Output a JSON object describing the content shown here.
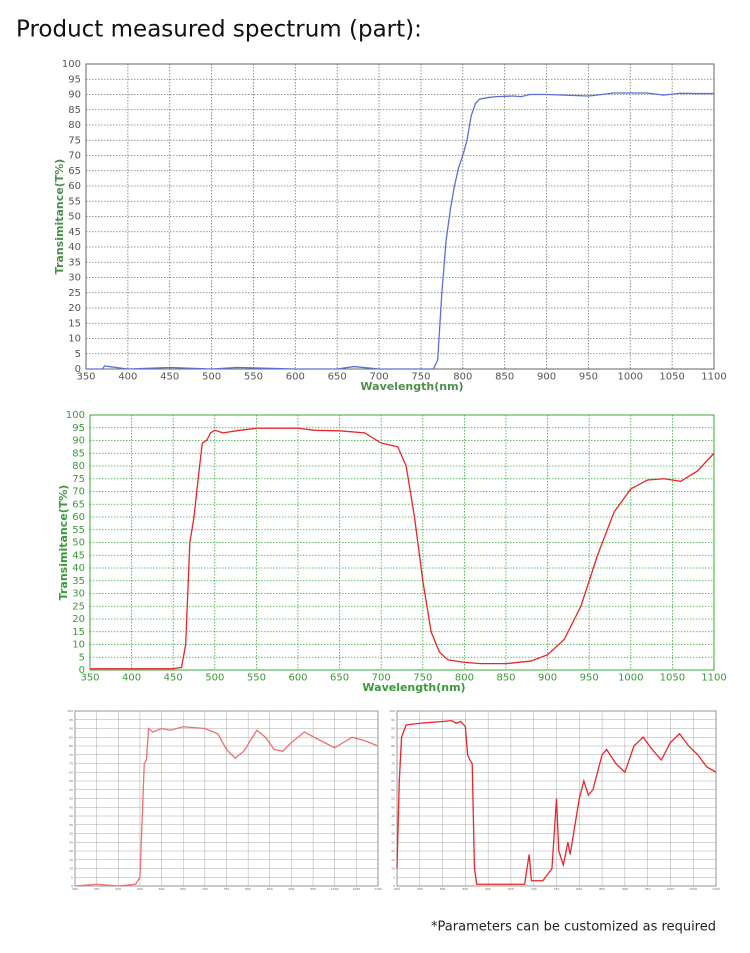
{
  "header": {
    "title": "Product measured spectrum (part):"
  },
  "footnote": "*Parameters can be customized as required",
  "chart_data": [
    {
      "type": "line",
      "xlabel": "Wavelength(nm)",
      "ylabel": "Transimitance(T%)",
      "x": [
        350,
        370,
        372,
        400,
        450,
        500,
        530,
        600,
        650,
        670,
        700,
        750,
        765,
        770,
        775,
        780,
        785,
        790,
        795,
        800,
        805,
        810,
        815,
        820,
        830,
        840,
        860,
        870,
        880,
        900,
        950,
        960,
        980,
        1000,
        1020,
        1040,
        1060,
        1080,
        1100
      ],
      "series": [
        {
          "name": "T",
          "color": "#5b6fd6",
          "values": [
            0,
            0,
            1,
            0,
            0.5,
            0,
            0.5,
            0,
            0,
            0.8,
            0,
            0,
            0,
            3,
            25,
            42,
            52,
            60,
            66,
            70,
            75,
            83,
            87,
            88.5,
            89,
            89.3,
            89.5,
            89.3,
            90,
            90,
            89.5,
            89.8,
            90.5,
            90.5,
            90.5,
            89.8,
            90.4,
            90.3,
            90.3
          ]
        }
      ],
      "xlim": [
        350,
        1100
      ],
      "ylim": [
        0,
        100
      ],
      "xticks": [
        350,
        400,
        450,
        500,
        550,
        600,
        650,
        700,
        750,
        800,
        850,
        900,
        950,
        1000,
        1050,
        1100
      ],
      "yticks": [
        0,
        5,
        10,
        15,
        20,
        25,
        30,
        35,
        40,
        45,
        50,
        55,
        60,
        65,
        70,
        75,
        80,
        85,
        90,
        95,
        100
      ],
      "grid": true
    },
    {
      "type": "line",
      "xlabel": "Wavelength(nm)",
      "ylabel": "Transimitance(T%)",
      "x": [
        350,
        450,
        460,
        465,
        470,
        475,
        480,
        485,
        490,
        495,
        500,
        510,
        530,
        550,
        600,
        620,
        650,
        680,
        700,
        720,
        730,
        740,
        750,
        760,
        770,
        780,
        800,
        820,
        850,
        880,
        900,
        920,
        940,
        960,
        980,
        1000,
        1020,
        1040,
        1060,
        1080,
        1100
      ],
      "series": [
        {
          "name": "T",
          "color": "#e8262a",
          "values": [
            0.5,
            0.5,
            1,
            10,
            50,
            60,
            75,
            89,
            90,
            93,
            94,
            93,
            94,
            94.8,
            94.8,
            94,
            93.8,
            93,
            89,
            87.5,
            80,
            60,
            35,
            15,
            7,
            4,
            3,
            2.5,
            2.5,
            3.5,
            6,
            12,
            25,
            45,
            62,
            71,
            74.5,
            75,
            74,
            78,
            85
          ]
        }
      ],
      "xlim": [
        350,
        1100
      ],
      "ylim": [
        0,
        100
      ],
      "xticks": [
        350,
        400,
        450,
        500,
        550,
        600,
        650,
        700,
        750,
        800,
        850,
        900,
        950,
        1000,
        1050,
        1100
      ],
      "yticks": [
        0,
        5,
        10,
        15,
        20,
        25,
        30,
        35,
        40,
        45,
        50,
        55,
        60,
        65,
        70,
        75,
        80,
        85,
        90,
        95,
        100
      ],
      "grid": true
    },
    {
      "type": "line",
      "x": [
        400,
        450,
        500,
        540,
        550,
        560,
        565,
        570,
        580,
        600,
        620,
        650,
        700,
        730,
        750,
        770,
        790,
        820,
        840,
        860,
        880,
        900,
        930,
        960,
        1000,
        1040,
        1070,
        1100
      ],
      "series": [
        {
          "name": "T",
          "color": "#f07070",
          "values": [
            0,
            1,
            0,
            1,
            5,
            70,
            72,
            90,
            88,
            90,
            89,
            91,
            90,
            87,
            78,
            73,
            77,
            89,
            85,
            78,
            77,
            82,
            88,
            84,
            79,
            85,
            83,
            80
          ]
        }
      ],
      "xlim": [
        400,
        1100
      ],
      "ylim": [
        0,
        100
      ],
      "xticks": [
        400,
        450,
        500,
        550,
        600,
        650,
        700,
        750,
        800,
        850,
        900,
        950,
        1000,
        1050,
        1100
      ],
      "yticks": [
        0,
        5,
        10,
        15,
        20,
        25,
        30,
        35,
        40,
        45,
        50,
        55,
        60,
        65,
        70,
        75,
        80,
        85,
        90,
        95,
        100
      ],
      "grid": true
    },
    {
      "type": "line",
      "x": [
        400,
        405,
        410,
        420,
        450,
        500,
        520,
        530,
        540,
        550,
        555,
        560,
        565,
        570,
        575,
        600,
        650,
        680,
        690,
        695,
        720,
        740,
        750,
        755,
        765,
        775,
        780,
        800,
        810,
        820,
        830,
        840,
        850,
        860,
        880,
        900,
        920,
        940,
        960,
        980,
        1000,
        1020,
        1040,
        1060,
        1080,
        1100
      ],
      "series": [
        {
          "name": "T",
          "color": "#e8262a",
          "values": [
            10,
            60,
            85,
            92,
            93,
            94,
            94.5,
            93,
            94,
            91,
            75,
            72,
            70,
            10,
            1,
            1,
            1,
            1,
            18,
            3,
            3,
            10,
            50,
            20,
            12,
            25,
            18,
            50,
            60,
            52,
            55,
            65,
            75,
            78,
            70,
            65,
            80,
            85,
            78,
            72,
            82,
            87,
            80,
            75,
            68,
            65
          ]
        }
      ],
      "xlim": [
        400,
        1100
      ],
      "ylim": [
        0,
        100
      ],
      "xticks": [
        400,
        450,
        500,
        550,
        600,
        650,
        700,
        750,
        800,
        850,
        900,
        950,
        1000,
        1050,
        1100
      ],
      "yticks": [
        0,
        5,
        10,
        15,
        20,
        25,
        30,
        35,
        40,
        45,
        50,
        55,
        60,
        65,
        70,
        75,
        80,
        85,
        90,
        95,
        100
      ],
      "grid": true
    }
  ]
}
